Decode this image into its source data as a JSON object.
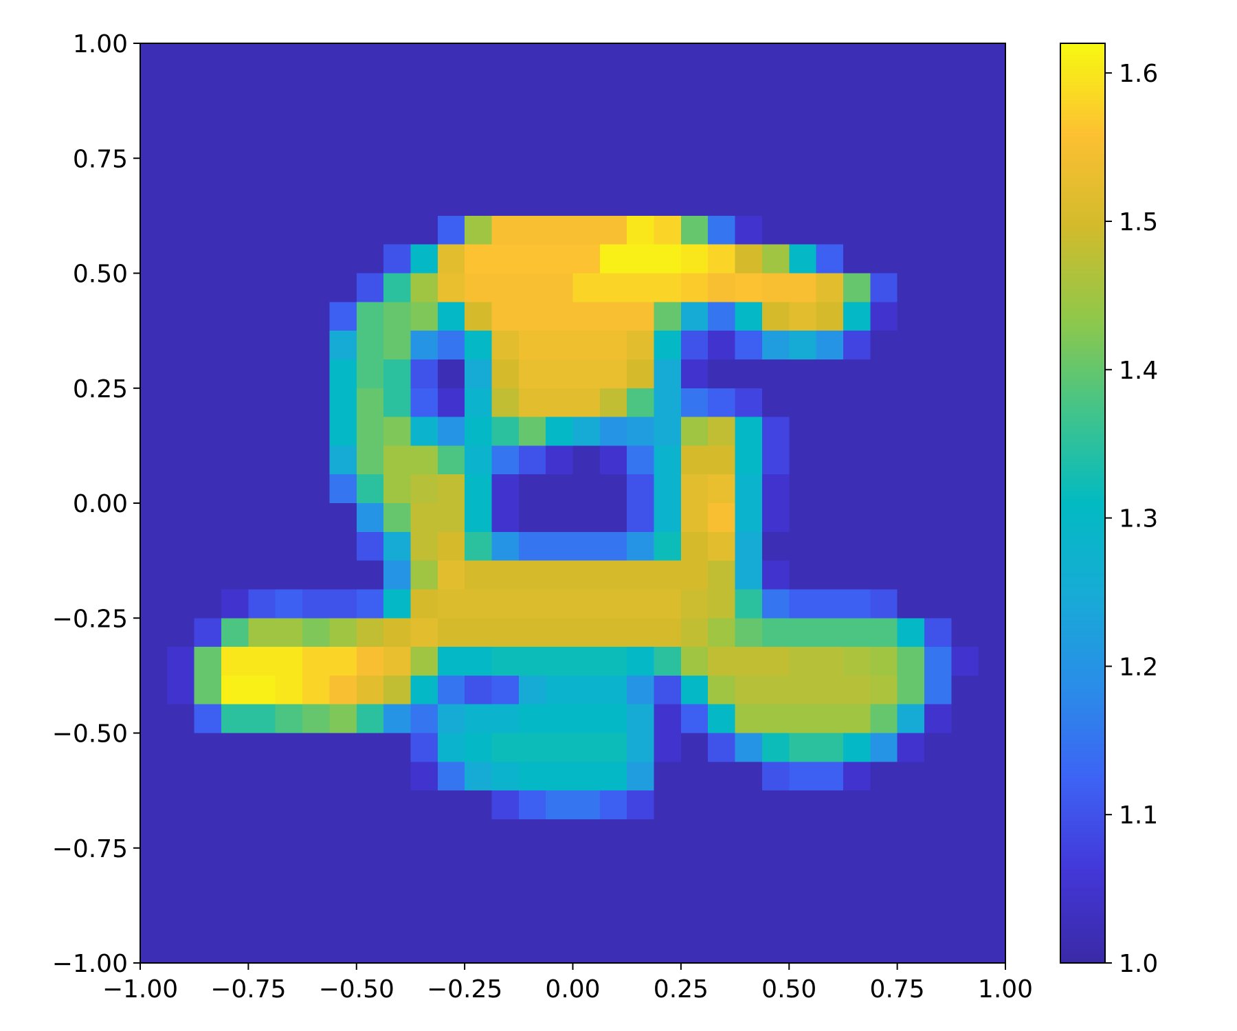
{
  "chart_data": {
    "type": "heatmap",
    "xlim": [
      -1,
      1
    ],
    "ylim": [
      -1,
      1
    ],
    "xticks": [
      {
        "value": -1,
        "label": "−1.00"
      },
      {
        "value": -0.75,
        "label": "−0.75"
      },
      {
        "value": -0.5,
        "label": "−0.50"
      },
      {
        "value": -0.25,
        "label": "−0.25"
      },
      {
        "value": 0,
        "label": "0.00"
      },
      0.25,
      {
        "value": 0.5,
        "label": "0.50"
      },
      0.75,
      {
        "value": 1,
        "label": "1.00"
      }
    ],
    "yticks": [
      {
        "value": -1,
        "label": "−1.00"
      },
      {
        "value": -0.75,
        "label": "−0.75"
      },
      {
        "value": -0.5,
        "label": "−0.50"
      },
      {
        "value": -0.25,
        "label": "−0.25"
      },
      {
        "value": 0,
        "label": "0.00"
      },
      0.25,
      {
        "value": 0.5,
        "label": "0.50"
      },
      0.75,
      {
        "value": 1,
        "label": "1.00"
      }
    ],
    "clim": [
      1,
      1.62
    ],
    "cticks": [
      {
        "value": 1,
        "label": "1.0"
      },
      1.1,
      1.2,
      1.3,
      1.4,
      1.5,
      1.6
    ],
    "colormap": [
      "#3a2aa6",
      "#4337d8",
      "#3d63f5",
      "#2a8de8",
      "#17abd6",
      "#02bac2",
      "#42c48a",
      "#8fc84a",
      "#d2bb2c",
      "#fcc032",
      "#f7f911"
    ],
    "z": [
      [
        1.02,
        1.02,
        1.02,
        1.02,
        1.02,
        1.02,
        1.02,
        1.02,
        1.02,
        1.02,
        1.02,
        1.02,
        1.02,
        1.02,
        1.02,
        1.02,
        1.02,
        1.02,
        1.02,
        1.02,
        1.02,
        1.02,
        1.02,
        1.02,
        1.02,
        1.02,
        1.02,
        1.02,
        1.02,
        1.02,
        1.02,
        1.02
      ],
      [
        1.02,
        1.02,
        1.02,
        1.02,
        1.02,
        1.02,
        1.02,
        1.02,
        1.02,
        1.02,
        1.02,
        1.02,
        1.02,
        1.02,
        1.02,
        1.02,
        1.02,
        1.02,
        1.02,
        1.02,
        1.02,
        1.02,
        1.02,
        1.02,
        1.02,
        1.02,
        1.02,
        1.02,
        1.02,
        1.02,
        1.02,
        1.02
      ],
      [
        1.02,
        1.02,
        1.02,
        1.02,
        1.02,
        1.02,
        1.02,
        1.02,
        1.02,
        1.02,
        1.02,
        1.02,
        1.02,
        1.02,
        1.02,
        1.02,
        1.02,
        1.02,
        1.02,
        1.02,
        1.02,
        1.02,
        1.02,
        1.02,
        1.02,
        1.02,
        1.02,
        1.02,
        1.02,
        1.02,
        1.02,
        1.02
      ],
      [
        1.02,
        1.02,
        1.02,
        1.02,
        1.02,
        1.02,
        1.02,
        1.02,
        1.02,
        1.02,
        1.02,
        1.02,
        1.02,
        1.02,
        1.02,
        1.02,
        1.02,
        1.02,
        1.02,
        1.02,
        1.02,
        1.02,
        1.02,
        1.02,
        1.02,
        1.02,
        1.02,
        1.02,
        1.02,
        1.02,
        1.02,
        1.02
      ],
      [
        1.02,
        1.02,
        1.02,
        1.02,
        1.02,
        1.02,
        1.02,
        1.02,
        1.02,
        1.02,
        1.02,
        1.02,
        1.02,
        1.02,
        1.02,
        1.02,
        1.02,
        1.02,
        1.02,
        1.02,
        1.02,
        1.02,
        1.02,
        1.02,
        1.02,
        1.02,
        1.02,
        1.02,
        1.02,
        1.02,
        1.02,
        1.02
      ],
      [
        1.02,
        1.02,
        1.02,
        1.02,
        1.02,
        1.02,
        1.02,
        1.02,
        1.02,
        1.02,
        1.02,
        1.02,
        1.02,
        1.02,
        1.02,
        1.02,
        1.02,
        1.02,
        1.02,
        1.02,
        1.02,
        1.02,
        1.02,
        1.02,
        1.02,
        1.02,
        1.02,
        1.02,
        1.02,
        1.02,
        1.02,
        1.02
      ],
      [
        1.02,
        1.02,
        1.02,
        1.02,
        1.02,
        1.02,
        1.02,
        1.02,
        1.02,
        1.02,
        1.02,
        1.12,
        1.45,
        1.55,
        1.55,
        1.55,
        1.55,
        1.55,
        1.6,
        1.58,
        1.4,
        1.15,
        1.05,
        1.02,
        1.02,
        1.02,
        1.02,
        1.02,
        1.02,
        1.02,
        1.02,
        1.02
      ],
      [
        1.02,
        1.02,
        1.02,
        1.02,
        1.02,
        1.02,
        1.02,
        1.02,
        1.02,
        1.1,
        1.3,
        1.52,
        1.56,
        1.56,
        1.56,
        1.56,
        1.56,
        1.61,
        1.61,
        1.61,
        1.6,
        1.58,
        1.5,
        1.45,
        1.3,
        1.12,
        1.02,
        1.02,
        1.02,
        1.02,
        1.02,
        1.02
      ],
      [
        1.02,
        1.02,
        1.02,
        1.02,
        1.02,
        1.02,
        1.02,
        1.02,
        1.1,
        1.35,
        1.45,
        1.53,
        1.55,
        1.55,
        1.55,
        1.55,
        1.58,
        1.58,
        1.58,
        1.58,
        1.57,
        1.55,
        1.56,
        1.55,
        1.55,
        1.52,
        1.4,
        1.1,
        1.02,
        1.02,
        1.02,
        1.02
      ],
      [
        1.02,
        1.02,
        1.02,
        1.02,
        1.02,
        1.02,
        1.02,
        1.12,
        1.38,
        1.4,
        1.42,
        1.3,
        1.5,
        1.55,
        1.55,
        1.55,
        1.55,
        1.55,
        1.55,
        1.4,
        1.25,
        1.15,
        1.3,
        1.5,
        1.52,
        1.5,
        1.3,
        1.05,
        1.02,
        1.02,
        1.02,
        1.02
      ],
      [
        1.02,
        1.02,
        1.02,
        1.02,
        1.02,
        1.02,
        1.02,
        1.25,
        1.38,
        1.4,
        1.2,
        1.15,
        1.3,
        1.52,
        1.54,
        1.54,
        1.54,
        1.54,
        1.52,
        1.3,
        1.1,
        1.05,
        1.12,
        1.22,
        1.25,
        1.2,
        1.08,
        1.02,
        1.02,
        1.02,
        1.02,
        1.02
      ],
      [
        1.02,
        1.02,
        1.02,
        1.02,
        1.02,
        1.02,
        1.02,
        1.3,
        1.38,
        1.35,
        1.1,
        1.02,
        1.25,
        1.5,
        1.53,
        1.53,
        1.53,
        1.53,
        1.5,
        1.25,
        1.05,
        1.02,
        1.02,
        1.02,
        1.02,
        1.02,
        1.02,
        1.02,
        1.02,
        1.02,
        1.02,
        1.02
      ],
      [
        1.02,
        1.02,
        1.02,
        1.02,
        1.02,
        1.02,
        1.02,
        1.3,
        1.4,
        1.35,
        1.12,
        1.05,
        1.28,
        1.48,
        1.52,
        1.52,
        1.52,
        1.48,
        1.38,
        1.25,
        1.15,
        1.12,
        1.08,
        1.02,
        1.02,
        1.02,
        1.02,
        1.02,
        1.02,
        1.02,
        1.02,
        1.02
      ],
      [
        1.02,
        1.02,
        1.02,
        1.02,
        1.02,
        1.02,
        1.02,
        1.3,
        1.4,
        1.42,
        1.28,
        1.2,
        1.3,
        1.35,
        1.4,
        1.3,
        1.25,
        1.2,
        1.22,
        1.25,
        1.45,
        1.48,
        1.3,
        1.08,
        1.02,
        1.02,
        1.02,
        1.02,
        1.02,
        1.02,
        1.02,
        1.02
      ],
      [
        1.02,
        1.02,
        1.02,
        1.02,
        1.02,
        1.02,
        1.02,
        1.25,
        1.4,
        1.45,
        1.45,
        1.38,
        1.28,
        1.15,
        1.1,
        1.05,
        1.02,
        1.05,
        1.15,
        1.28,
        1.5,
        1.5,
        1.3,
        1.08,
        1.02,
        1.02,
        1.02,
        1.02,
        1.02,
        1.02,
        1.02,
        1.02
      ],
      [
        1.02,
        1.02,
        1.02,
        1.02,
        1.02,
        1.02,
        1.02,
        1.15,
        1.35,
        1.45,
        1.47,
        1.48,
        1.3,
        1.05,
        1.02,
        1.02,
        1.02,
        1.02,
        1.1,
        1.28,
        1.52,
        1.53,
        1.28,
        1.05,
        1.02,
        1.02,
        1.02,
        1.02,
        1.02,
        1.02,
        1.02,
        1.02
      ],
      [
        1.02,
        1.02,
        1.02,
        1.02,
        1.02,
        1.02,
        1.02,
        1.02,
        1.2,
        1.4,
        1.48,
        1.48,
        1.3,
        1.05,
        1.02,
        1.02,
        1.02,
        1.02,
        1.1,
        1.28,
        1.52,
        1.55,
        1.28,
        1.05,
        1.02,
        1.02,
        1.02,
        1.02,
        1.02,
        1.02,
        1.02,
        1.02
      ],
      [
        1.02,
        1.02,
        1.02,
        1.02,
        1.02,
        1.02,
        1.02,
        1.02,
        1.1,
        1.25,
        1.48,
        1.5,
        1.35,
        1.2,
        1.15,
        1.15,
        1.15,
        1.15,
        1.2,
        1.32,
        1.5,
        1.52,
        1.25,
        1.02,
        1.02,
        1.02,
        1.02,
        1.02,
        1.02,
        1.02,
        1.02,
        1.02
      ],
      [
        1.02,
        1.02,
        1.02,
        1.02,
        1.02,
        1.02,
        1.02,
        1.02,
        1.02,
        1.2,
        1.45,
        1.52,
        1.5,
        1.5,
        1.5,
        1.5,
        1.5,
        1.5,
        1.5,
        1.5,
        1.5,
        1.48,
        1.25,
        1.05,
        1.02,
        1.02,
        1.02,
        1.02,
        1.02,
        1.02,
        1.02,
        1.02
      ],
      [
        1.02,
        1.02,
        1.02,
        1.05,
        1.1,
        1.12,
        1.1,
        1.1,
        1.12,
        1.3,
        1.5,
        1.51,
        1.51,
        1.51,
        1.51,
        1.51,
        1.51,
        1.51,
        1.51,
        1.51,
        1.49,
        1.48,
        1.35,
        1.15,
        1.12,
        1.12,
        1.12,
        1.1,
        1.02,
        1.02,
        1.02,
        1.02
      ],
      [
        1.02,
        1.02,
        1.08,
        1.38,
        1.45,
        1.45,
        1.42,
        1.45,
        1.48,
        1.5,
        1.52,
        1.5,
        1.5,
        1.5,
        1.5,
        1.5,
        1.5,
        1.5,
        1.5,
        1.5,
        1.48,
        1.45,
        1.4,
        1.38,
        1.38,
        1.38,
        1.38,
        1.38,
        1.3,
        1.1,
        1.02,
        1.02
      ],
      [
        1.02,
        1.05,
        1.4,
        1.6,
        1.6,
        1.6,
        1.58,
        1.58,
        1.55,
        1.53,
        1.45,
        1.3,
        1.3,
        1.32,
        1.32,
        1.32,
        1.32,
        1.32,
        1.3,
        1.35,
        1.45,
        1.48,
        1.48,
        1.48,
        1.47,
        1.47,
        1.46,
        1.45,
        1.4,
        1.15,
        1.05,
        1.02
      ],
      [
        1.02,
        1.05,
        1.4,
        1.61,
        1.61,
        1.6,
        1.58,
        1.55,
        1.52,
        1.48,
        1.3,
        1.15,
        1.1,
        1.12,
        1.25,
        1.28,
        1.28,
        1.28,
        1.2,
        1.1,
        1.3,
        1.45,
        1.47,
        1.47,
        1.47,
        1.47,
        1.47,
        1.46,
        1.4,
        1.15,
        1.02,
        1.02
      ],
      [
        1.02,
        1.02,
        1.12,
        1.35,
        1.35,
        1.38,
        1.4,
        1.42,
        1.35,
        1.2,
        1.15,
        1.25,
        1.28,
        1.28,
        1.3,
        1.3,
        1.3,
        1.3,
        1.25,
        1.05,
        1.12,
        1.3,
        1.45,
        1.45,
        1.45,
        1.45,
        1.45,
        1.4,
        1.25,
        1.05,
        1.02,
        1.02
      ],
      [
        1.02,
        1.02,
        1.02,
        1.02,
        1.02,
        1.02,
        1.02,
        1.02,
        1.02,
        1.02,
        1.1,
        1.28,
        1.3,
        1.32,
        1.32,
        1.32,
        1.32,
        1.32,
        1.25,
        1.05,
        1.02,
        1.1,
        1.2,
        1.32,
        1.35,
        1.35,
        1.3,
        1.2,
        1.05,
        1.02,
        1.02,
        1.02
      ],
      [
        1.02,
        1.02,
        1.02,
        1.02,
        1.02,
        1.02,
        1.02,
        1.02,
        1.02,
        1.02,
        1.05,
        1.15,
        1.25,
        1.28,
        1.3,
        1.3,
        1.3,
        1.3,
        1.22,
        1.02,
        1.02,
        1.02,
        1.02,
        1.1,
        1.12,
        1.12,
        1.05,
        1.02,
        1.02,
        1.02,
        1.02,
        1.02
      ],
      [
        1.02,
        1.02,
        1.02,
        1.02,
        1.02,
        1.02,
        1.02,
        1.02,
        1.02,
        1.02,
        1.02,
        1.02,
        1.02,
        1.08,
        1.12,
        1.15,
        1.15,
        1.12,
        1.08,
        1.02,
        1.02,
        1.02,
        1.02,
        1.02,
        1.02,
        1.02,
        1.02,
        1.02,
        1.02,
        1.02,
        1.02,
        1.02
      ],
      [
        1.02,
        1.02,
        1.02,
        1.02,
        1.02,
        1.02,
        1.02,
        1.02,
        1.02,
        1.02,
        1.02,
        1.02,
        1.02,
        1.02,
        1.02,
        1.02,
        1.02,
        1.02,
        1.02,
        1.02,
        1.02,
        1.02,
        1.02,
        1.02,
        1.02,
        1.02,
        1.02,
        1.02,
        1.02,
        1.02,
        1.02,
        1.02
      ],
      [
        1.02,
        1.02,
        1.02,
        1.02,
        1.02,
        1.02,
        1.02,
        1.02,
        1.02,
        1.02,
        1.02,
        1.02,
        1.02,
        1.02,
        1.02,
        1.02,
        1.02,
        1.02,
        1.02,
        1.02,
        1.02,
        1.02,
        1.02,
        1.02,
        1.02,
        1.02,
        1.02,
        1.02,
        1.02,
        1.02,
        1.02,
        1.02
      ],
      [
        1.02,
        1.02,
        1.02,
        1.02,
        1.02,
        1.02,
        1.02,
        1.02,
        1.02,
        1.02,
        1.02,
        1.02,
        1.02,
        1.02,
        1.02,
        1.02,
        1.02,
        1.02,
        1.02,
        1.02,
        1.02,
        1.02,
        1.02,
        1.02,
        1.02,
        1.02,
        1.02,
        1.02,
        1.02,
        1.02,
        1.02,
        1.02
      ],
      [
        1.02,
        1.02,
        1.02,
        1.02,
        1.02,
        1.02,
        1.02,
        1.02,
        1.02,
        1.02,
        1.02,
        1.02,
        1.02,
        1.02,
        1.02,
        1.02,
        1.02,
        1.02,
        1.02,
        1.02,
        1.02,
        1.02,
        1.02,
        1.02,
        1.02,
        1.02,
        1.02,
        1.02,
        1.02,
        1.02,
        1.02,
        1.02
      ],
      [
        1.02,
        1.02,
        1.02,
        1.02,
        1.02,
        1.02,
        1.02,
        1.02,
        1.02,
        1.02,
        1.02,
        1.02,
        1.02,
        1.02,
        1.02,
        1.02,
        1.02,
        1.02,
        1.02,
        1.02,
        1.02,
        1.02,
        1.02,
        1.02,
        1.02,
        1.02,
        1.02,
        1.02,
        1.02,
        1.02,
        1.02,
        1.02
      ]
    ]
  }
}
